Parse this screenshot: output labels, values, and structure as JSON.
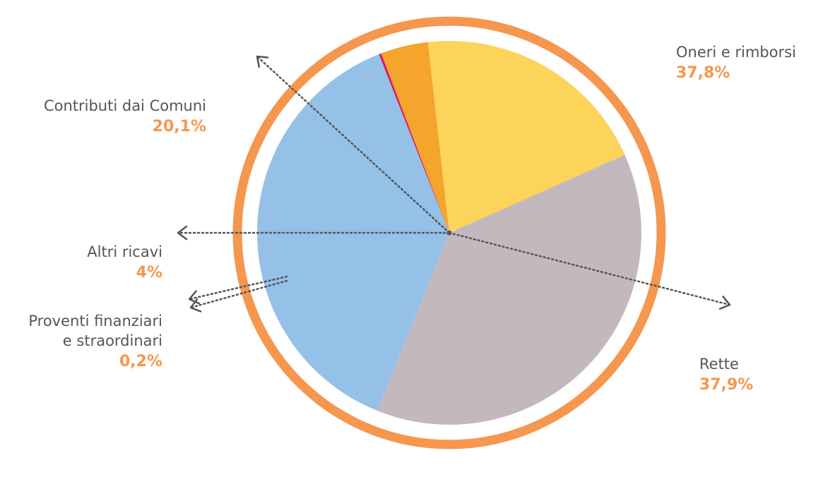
{
  "chart_data": {
    "type": "pie",
    "title": "",
    "legend": "none",
    "slices": [
      {
        "label": "Oneri e rimborsi",
        "value": 37.8,
        "display": "37,8%",
        "color": "#c4b8bf"
      },
      {
        "label": "Rette",
        "value": 37.9,
        "display": "37,9%",
        "color": "#95c0e8"
      },
      {
        "label": "Proventi finanziari e straordinari",
        "label_lines": [
          "Proventi finanziari",
          "e straordinari"
        ],
        "value": 0.2,
        "display": "0,2%",
        "color": "#d81c60"
      },
      {
        "label": "Altri ricavi",
        "value": 4,
        "display": "4%",
        "color": "#f5a42c"
      },
      {
        "label": "Contributi dai Comuni",
        "value": 20.1,
        "display": "20,1%",
        "color": "#fdd45a"
      }
    ],
    "ring_color": "#f5974e",
    "leader_color": "#555555",
    "accent_color": "#f5974e",
    "text_color": "#555555"
  }
}
